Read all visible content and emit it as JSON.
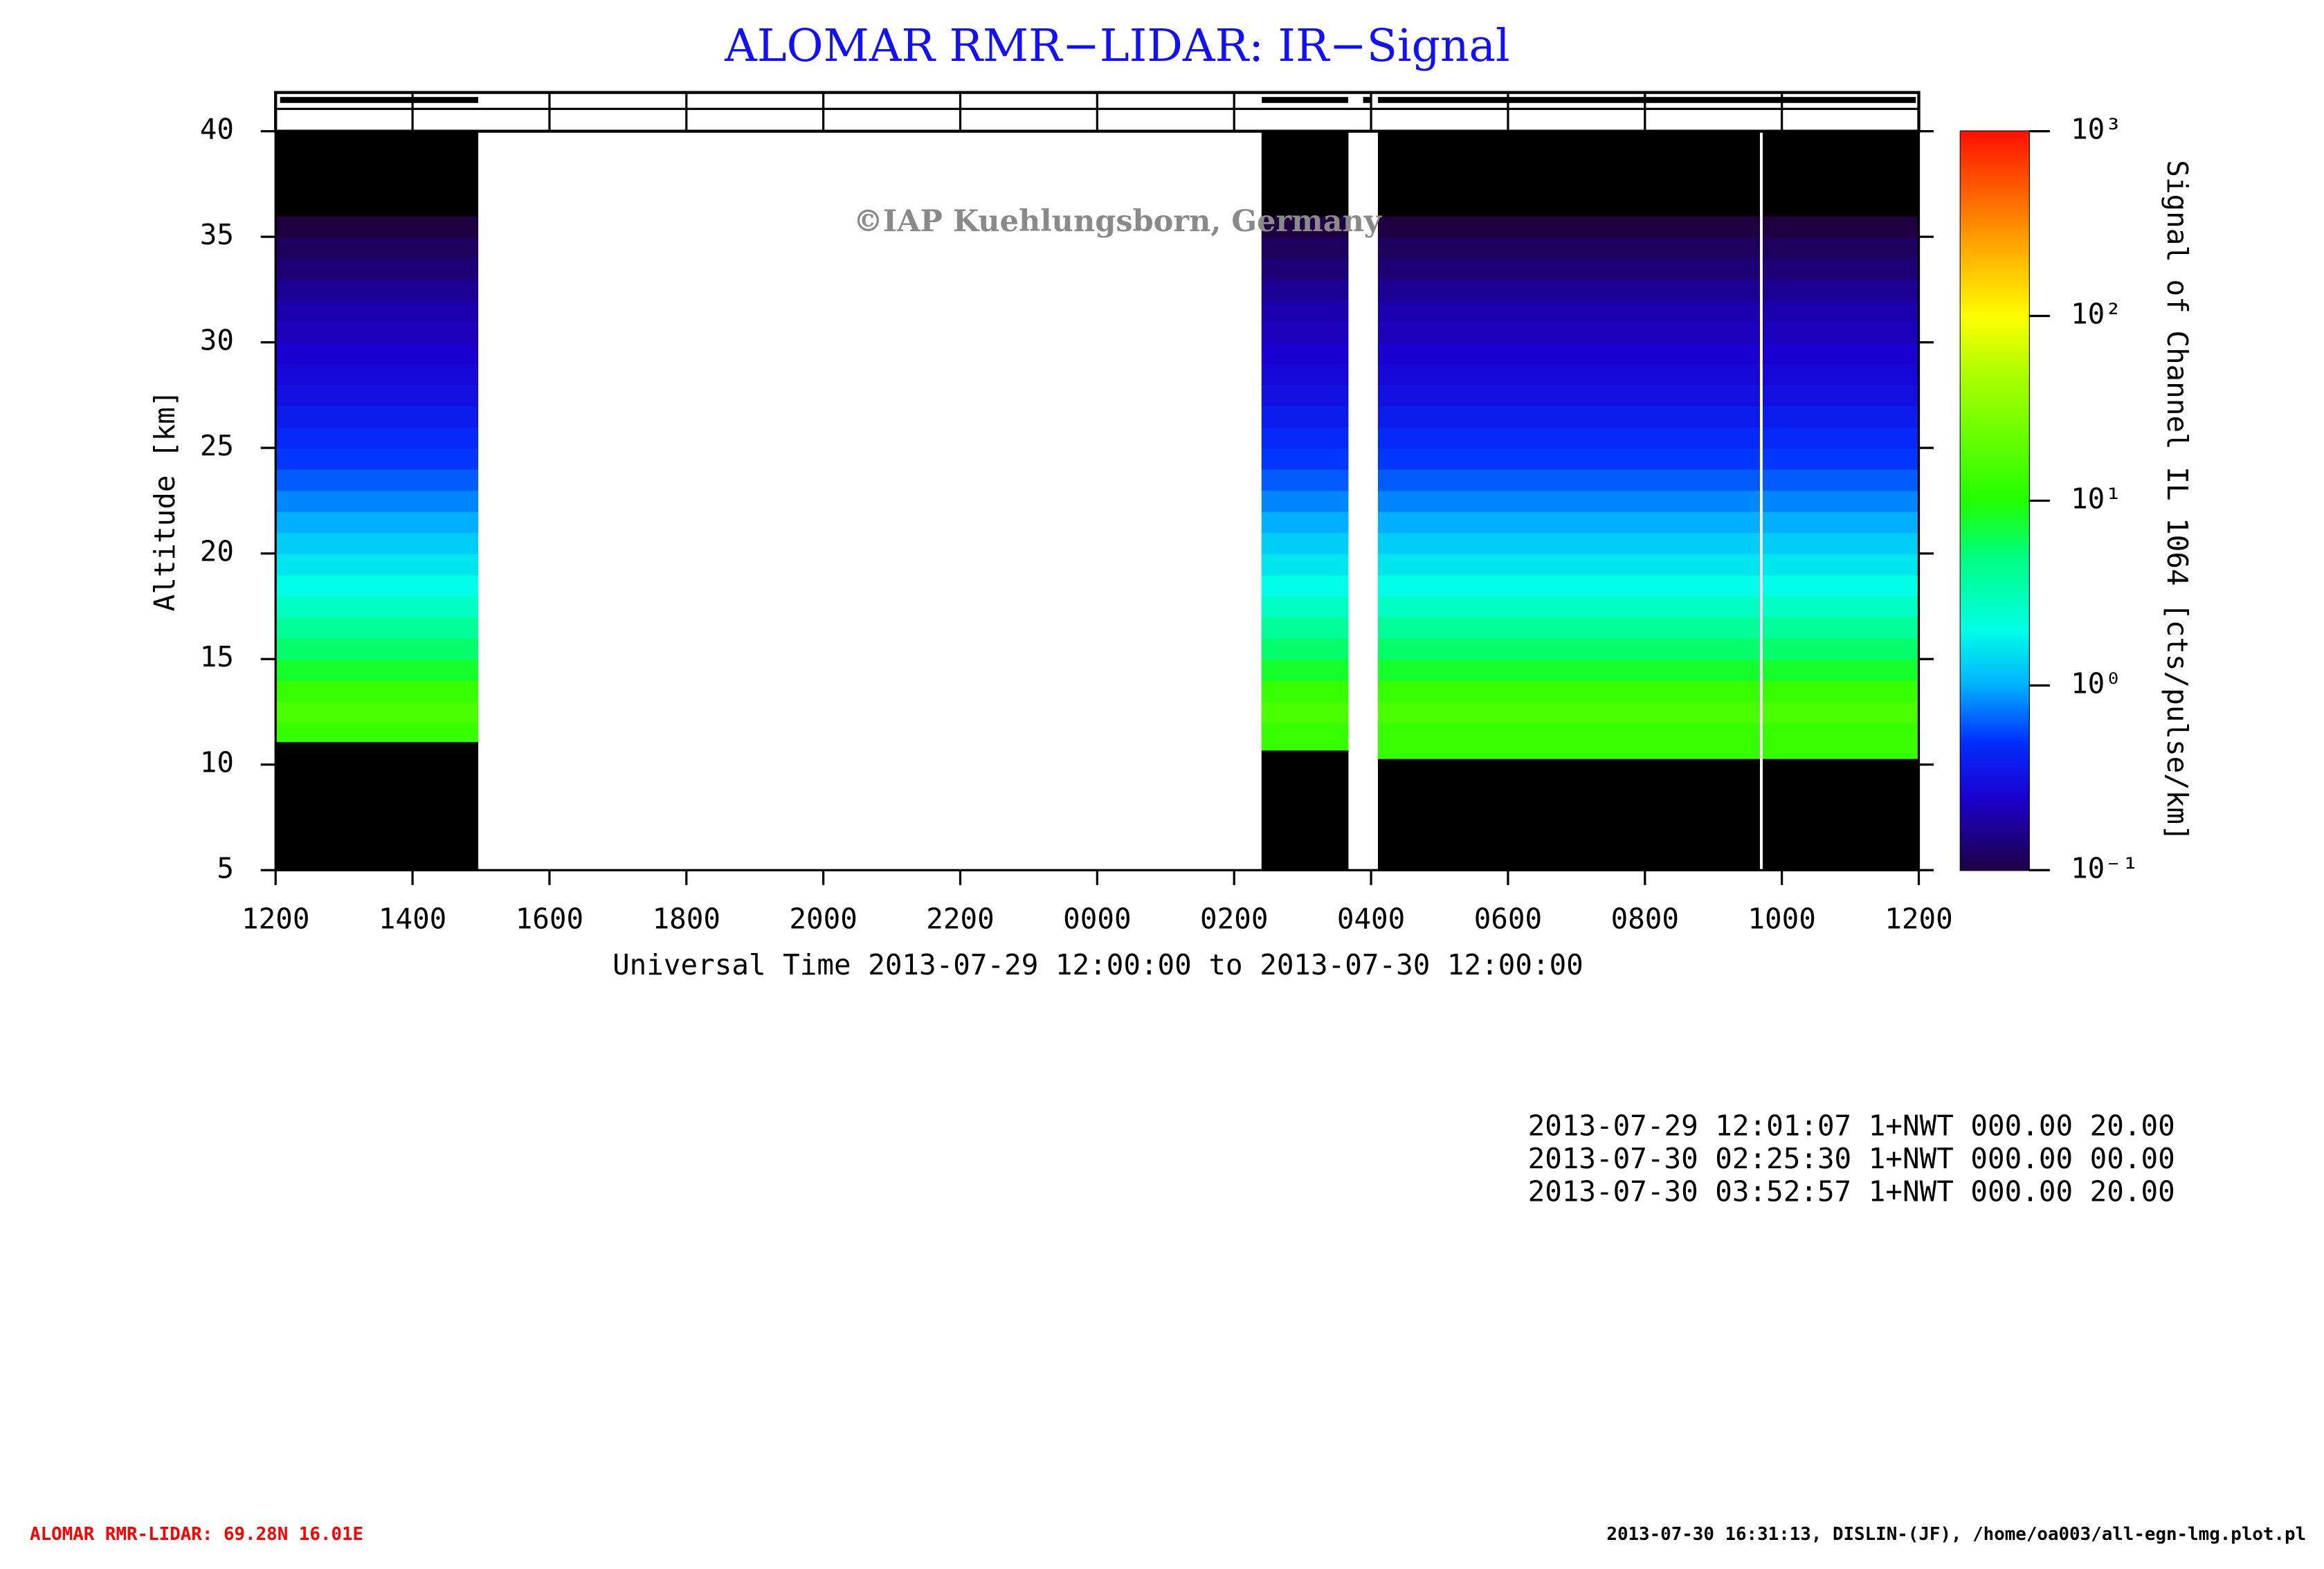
{
  "chart_data": {
    "type": "heatmap",
    "title": "ALOMAR RMR−LIDAR: IR−Signal",
    "watermark": "©IAP Kuehlungsborn, Germany",
    "xlabel": "Universal Time 2013-07-29 12:00:00 to 2013-07-30 12:00:00",
    "ylabel": "Altitude [km]",
    "colorbar_label": "Signal of Channel IL 1064 [cts/pulse/km]",
    "xlim": [
      0,
      24
    ],
    "xticks": [
      {
        "value": 0,
        "label": "1200"
      },
      {
        "value": 2,
        "label": "1400"
      },
      {
        "value": 4,
        "label": "1600"
      },
      {
        "value": 6,
        "label": "1800"
      },
      {
        "value": 8,
        "label": "2000"
      },
      {
        "value": 10,
        "label": "2200"
      },
      {
        "value": 12,
        "label": "0000"
      },
      {
        "value": 14,
        "label": "0200"
      },
      {
        "value": 16,
        "label": "0400"
      },
      {
        "value": 18,
        "label": "0600"
      },
      {
        "value": 20,
        "label": "0800"
      },
      {
        "value": 22,
        "label": "1000"
      },
      {
        "value": 24,
        "label": "1200"
      }
    ],
    "ylim": [
      5,
      40
    ],
    "yticks": [
      5,
      10,
      15,
      20,
      25,
      30,
      35,
      40
    ],
    "clim": [
      0.1,
      1000
    ],
    "log_colorscale": true,
    "cticks": [
      {
        "value": 0.1,
        "label": "10⁻¹"
      },
      {
        "value": 1,
        "label": "10⁰"
      },
      {
        "value": 10,
        "label": "10¹"
      },
      {
        "value": 100,
        "label": "10²"
      },
      {
        "value": 1000,
        "label": "10³"
      }
    ],
    "colorscale": [
      {
        "value": 0.1,
        "color": "#1e0040"
      },
      {
        "value": 0.25,
        "color": "#1a00d0"
      },
      {
        "value": 0.5,
        "color": "#0030ff"
      },
      {
        "value": 1,
        "color": "#00b0ff"
      },
      {
        "value": 2,
        "color": "#00ffe8"
      },
      {
        "value": 5,
        "color": "#00ff80"
      },
      {
        "value": 10,
        "color": "#20ff00"
      },
      {
        "value": 50,
        "color": "#b0ff00"
      },
      {
        "value": 100,
        "color": "#ffff00"
      },
      {
        "value": 300,
        "color": "#ff9000"
      },
      {
        "value": 1000,
        "color": "#ff1000"
      }
    ],
    "segments": [
      {
        "start": 0,
        "end": 2.96,
        "cloud_top": 11.1
      },
      {
        "start": 14.4,
        "end": 15.67,
        "cloud_top": 10.7
      },
      {
        "start": 16.1,
        "end": 21.68,
        "cloud_top": 10.3
      },
      {
        "start": 21.72,
        "end": 24,
        "cloud_top": 10.3
      }
    ],
    "profile": {
      "altitudes": [
        11,
        12,
        13,
        14,
        15,
        16,
        17,
        18,
        19,
        20,
        21,
        22,
        23,
        24,
        25,
        26,
        27,
        28,
        29,
        30,
        31,
        32,
        33,
        34,
        35,
        36,
        37,
        38,
        39
      ],
      "values": [
        12.6,
        15.8,
        12.6,
        7.9,
        5.6,
        4,
        2.8,
        2,
        1.6,
        1.3,
        1,
        0.8,
        0.63,
        0.52,
        0.45,
        0.38,
        0.32,
        0.28,
        0.25,
        0.22,
        0.2,
        0.17,
        0.14,
        0.12,
        0.1,
        0.08,
        0.06,
        0.05,
        0.04
      ]
    },
    "info_lines": [
      "2013-07-29 12:01:07 1+NWT 000.00 20.00",
      "2013-07-30 02:25:30 1+NWT 000.00 00.00",
      "2013-07-30 03:52:57 1+NWT 000.00 20.00"
    ],
    "footer_left": "ALOMAR RMR-LIDAR: 69.28N 16.01E",
    "footer_right": "2013-07-30 16:31:13, DISLIN-(JF), /home/oa003/all-egn-lmg.plot.pl"
  }
}
